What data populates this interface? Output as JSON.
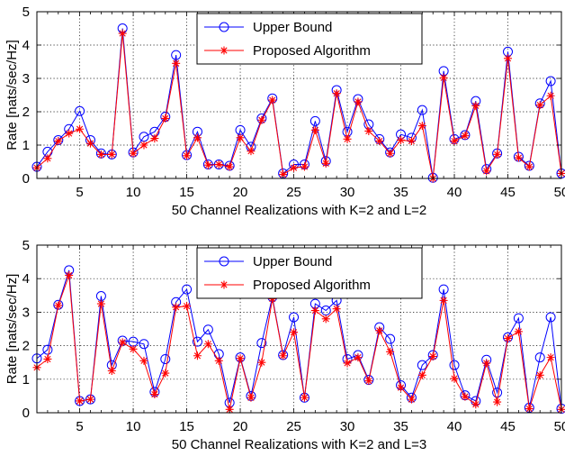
{
  "chart_data": [
    {
      "type": "line",
      "xlabel": "50 Channel Realizations with K=2 and L=2",
      "ylabel": "Rate [nats/sec/Hz]",
      "xlim": [
        1,
        50
      ],
      "ylim": [
        0,
        5
      ],
      "xticks": [
        5,
        10,
        15,
        20,
        25,
        30,
        35,
        40,
        45,
        50
      ],
      "yticks": [
        0,
        1,
        2,
        3,
        4,
        5
      ],
      "grid": true,
      "legend_position": "top-center",
      "x": [
        1,
        2,
        3,
        4,
        5,
        6,
        7,
        8,
        9,
        10,
        11,
        12,
        13,
        14,
        15,
        16,
        17,
        18,
        19,
        20,
        21,
        22,
        23,
        24,
        25,
        26,
        27,
        28,
        29,
        30,
        31,
        32,
        33,
        34,
        35,
        36,
        37,
        38,
        39,
        40,
        41,
        42,
        43,
        44,
        45,
        46,
        47,
        48,
        49,
        50
      ],
      "series": [
        {
          "name": "Upper Bound",
          "color": "#0000ff",
          "marker": "circle",
          "values": [
            0.35,
            0.8,
            1.15,
            1.48,
            2.02,
            1.15,
            0.75,
            0.72,
            4.5,
            0.78,
            1.25,
            1.4,
            1.85,
            3.7,
            0.7,
            1.4,
            0.42,
            0.42,
            0.38,
            1.45,
            0.95,
            1.8,
            2.4,
            0.15,
            0.42,
            0.42,
            1.72,
            0.52,
            2.65,
            1.4,
            2.38,
            1.62,
            1.18,
            0.78,
            1.32,
            1.22,
            2.05,
            0.02,
            3.22,
            1.18,
            1.3,
            2.32,
            0.28,
            0.75,
            3.8,
            0.65,
            0.38,
            2.25,
            2.92,
            0.15
          ]
        },
        {
          "name": "Proposed Algorithm",
          "color": "#ff0000",
          "marker": "asterisk",
          "values": [
            0.32,
            0.6,
            1.12,
            1.35,
            1.48,
            1.05,
            0.72,
            0.72,
            4.35,
            0.75,
            1.0,
            1.2,
            1.8,
            3.45,
            0.68,
            1.22,
            0.4,
            0.42,
            0.35,
            1.22,
            0.82,
            1.75,
            2.35,
            0.12,
            0.32,
            0.35,
            1.45,
            0.45,
            2.55,
            1.18,
            2.3,
            1.42,
            1.12,
            0.75,
            1.15,
            1.12,
            1.58,
            0.0,
            3.02,
            1.12,
            1.28,
            2.18,
            0.22,
            0.72,
            3.6,
            0.62,
            0.35,
            2.2,
            2.48,
            0.15
          ]
        }
      ]
    },
    {
      "type": "line",
      "xlabel": "50 Channel Realizations with K=2 and L=3",
      "ylabel": "Rate [nats/sec/Hz]",
      "xlim": [
        1,
        50
      ],
      "ylim": [
        0,
        5
      ],
      "xticks": [
        5,
        10,
        15,
        20,
        25,
        30,
        35,
        40,
        45,
        50
      ],
      "yticks": [
        0,
        1,
        2,
        3,
        4,
        5
      ],
      "grid": true,
      "legend_position": "top-center",
      "x": [
        1,
        2,
        3,
        4,
        5,
        6,
        7,
        8,
        9,
        10,
        11,
        12,
        13,
        14,
        15,
        16,
        17,
        18,
        19,
        20,
        21,
        22,
        23,
        24,
        25,
        26,
        27,
        28,
        29,
        30,
        31,
        32,
        33,
        34,
        35,
        36,
        37,
        38,
        39,
        40,
        41,
        42,
        43,
        44,
        45,
        46,
        47,
        48,
        49,
        50
      ],
      "series": [
        {
          "name": "Upper Bound",
          "color": "#0000ff",
          "marker": "circle",
          "values": [
            1.62,
            1.88,
            3.22,
            4.25,
            0.35,
            0.4,
            3.48,
            1.42,
            2.15,
            2.12,
            2.05,
            0.62,
            1.6,
            3.3,
            3.68,
            2.12,
            2.48,
            1.75,
            0.3,
            1.65,
            0.5,
            2.08,
            3.45,
            1.72,
            2.85,
            0.45,
            3.25,
            3.05,
            3.35,
            1.6,
            1.72,
            0.98,
            2.55,
            2.2,
            0.82,
            0.45,
            1.42,
            1.72,
            3.68,
            1.42,
            0.52,
            0.35,
            1.58,
            0.6,
            2.25,
            2.82,
            0.15,
            1.65,
            2.85,
            0.12
          ]
        },
        {
          "name": "Proposed Algorithm",
          "color": "#ff0000",
          "marker": "asterisk",
          "values": [
            1.35,
            1.6,
            3.2,
            4.1,
            0.35,
            0.4,
            3.25,
            1.25,
            2.1,
            1.9,
            1.55,
            0.55,
            1.18,
            3.15,
            3.18,
            1.7,
            2.05,
            1.55,
            0.1,
            1.62,
            0.45,
            1.5,
            3.4,
            1.7,
            2.4,
            0.45,
            3.05,
            2.8,
            3.1,
            1.48,
            1.65,
            0.95,
            2.45,
            1.82,
            0.75,
            0.4,
            1.12,
            1.68,
            3.35,
            1.02,
            0.48,
            0.25,
            1.48,
            0.32,
            2.22,
            2.42,
            0.12,
            1.12,
            1.65,
            0.1
          ]
        }
      ]
    }
  ]
}
